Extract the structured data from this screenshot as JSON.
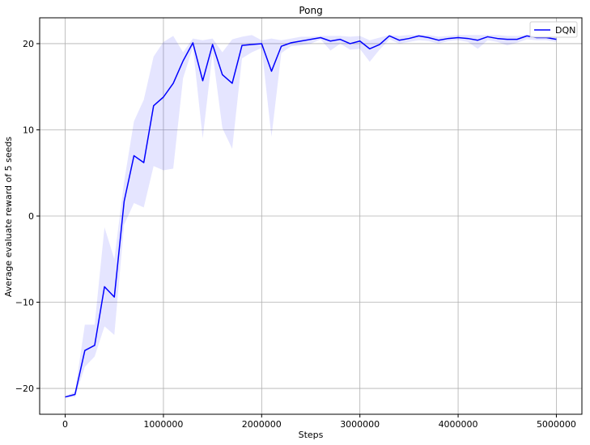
{
  "chart_data": {
    "type": "line",
    "title": "Pong",
    "xlabel": "Steps",
    "ylabel": "Average evaluate reward of 5 seeds",
    "xlim": [
      -260000,
      5260000
    ],
    "ylim": [
      -23,
      23
    ],
    "xticks": [
      0,
      1000000,
      2000000,
      3000000,
      4000000,
      5000000
    ],
    "xtick_labels": [
      "0",
      "1000000",
      "2000000",
      "3000000",
      "4000000",
      "5000000"
    ],
    "yticks": [
      -20,
      -10,
      0,
      10,
      20
    ],
    "ytick_labels": [
      "−20",
      "−10",
      "0",
      "10",
      "20"
    ],
    "grid": true,
    "legend_position": "top-right",
    "series": [
      {
        "name": "DQN",
        "color": "#0000ff",
        "band_color": "#0000ff",
        "x": [
          0,
          100000,
          200000,
          300000,
          400000,
          500000,
          600000,
          700000,
          800000,
          900000,
          1000000,
          1100000,
          1200000,
          1300000,
          1400000,
          1500000,
          1600000,
          1700000,
          1800000,
          1900000,
          2000000,
          2100000,
          2200000,
          2300000,
          2400000,
          2500000,
          2600000,
          2700000,
          2800000,
          2900000,
          3000000,
          3100000,
          3200000,
          3300000,
          3400000,
          3500000,
          3600000,
          3700000,
          3800000,
          3900000,
          4000000,
          4100000,
          4200000,
          4300000,
          4400000,
          4500000,
          4600000,
          4700000,
          4800000,
          4900000,
          5000000
        ],
        "y": [
          -21.0,
          -20.7,
          -15.6,
          -15.0,
          -8.2,
          -9.4,
          1.7,
          7.0,
          6.2,
          12.8,
          13.8,
          15.4,
          18.0,
          20.1,
          15.7,
          19.9,
          16.4,
          15.4,
          19.8,
          19.9,
          20.0,
          16.8,
          19.7,
          20.1,
          20.3,
          20.5,
          20.7,
          20.3,
          20.5,
          20.0,
          20.3,
          19.4,
          19.9,
          20.9,
          20.4,
          20.6,
          20.9,
          20.7,
          20.4,
          20.6,
          20.7,
          20.6,
          20.4,
          20.8,
          20.6,
          20.5,
          20.5,
          20.9,
          20.7,
          20.7,
          20.5
        ],
        "lower": [
          -21.0,
          -21.0,
          -17.5,
          -16.3,
          -12.8,
          -13.8,
          -1.0,
          1.5,
          1.0,
          5.8,
          5.3,
          5.5,
          16.0,
          19.6,
          9.0,
          18.9,
          10.2,
          7.8,
          18.3,
          19.0,
          19.5,
          9.2,
          18.9,
          19.7,
          19.8,
          20.0,
          20.5,
          19.2,
          20.0,
          19.3,
          19.4,
          17.9,
          19.3,
          20.5,
          20.0,
          20.2,
          20.4,
          20.3,
          20.0,
          20.3,
          20.4,
          20.2,
          19.4,
          20.4,
          20.2,
          19.8,
          20.1,
          20.5,
          20.4,
          20.4,
          20.2
        ],
        "upper": [
          -20.9,
          -20.4,
          -12.6,
          -12.6,
          -1.3,
          -5.0,
          4.0,
          11.0,
          13.5,
          18.5,
          20.2,
          20.9,
          19.0,
          20.6,
          20.4,
          20.6,
          19.0,
          20.5,
          20.8,
          21.0,
          20.4,
          20.6,
          20.4,
          20.6,
          20.8,
          20.8,
          20.9,
          20.9,
          20.9,
          20.8,
          20.9,
          20.4,
          20.7,
          21.0,
          20.9,
          21.0,
          21.0,
          21.0,
          20.8,
          20.9,
          21.0,
          21.0,
          21.0,
          21.0,
          21.0,
          20.9,
          20.9,
          21.0,
          21.0,
          21.0,
          20.9
        ]
      }
    ]
  }
}
